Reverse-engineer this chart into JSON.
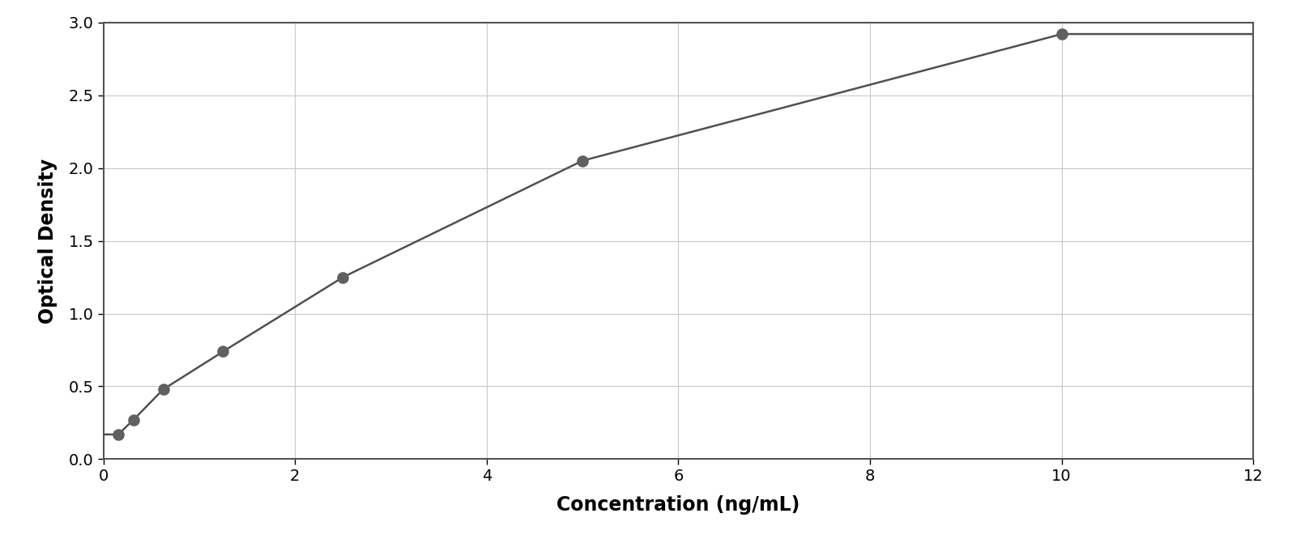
{
  "x_data": [
    0.156,
    0.313,
    0.625,
    1.25,
    2.5,
    5.0,
    10.0
  ],
  "y_data": [
    0.17,
    0.27,
    0.48,
    0.74,
    1.25,
    2.05,
    2.92
  ],
  "xlabel": "Concentration (ng/mL)",
  "ylabel": "Optical Density",
  "xlim": [
    0,
    12
  ],
  "ylim": [
    0,
    3
  ],
  "xticks": [
    0,
    2,
    4,
    6,
    8,
    10,
    12
  ],
  "yticks": [
    0,
    0.5,
    1.0,
    1.5,
    2.0,
    2.5,
    3.0
  ],
  "dot_color": "#606060",
  "line_color": "#505050",
  "grid_color": "#c8c8c8",
  "background_color": "#ffffff",
  "figure_background": "#ffffff",
  "spine_color": "#555555",
  "dot_size": 90,
  "line_width": 1.8,
  "xlabel_fontsize": 17,
  "ylabel_fontsize": 17,
  "tick_fontsize": 14,
  "xlabel_fontweight": "bold",
  "ylabel_fontweight": "bold"
}
